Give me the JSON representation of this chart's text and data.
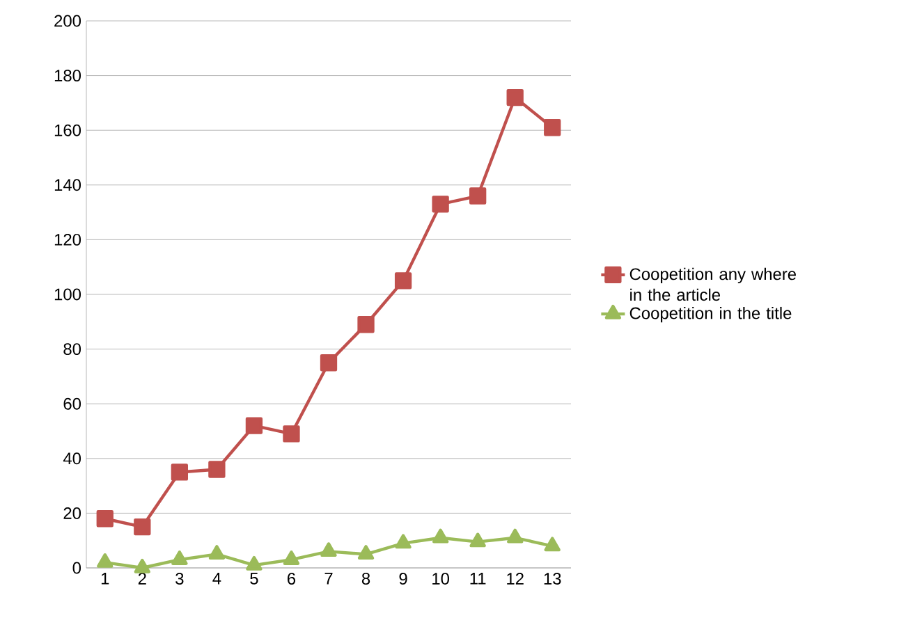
{
  "chart_data": {
    "type": "line",
    "categories": [
      "1",
      "2",
      "3",
      "4",
      "5",
      "6",
      "7",
      "8",
      "9",
      "10",
      "11",
      "12",
      "13"
    ],
    "series": [
      {
        "name": "Coopetition any where in the article",
        "color": "#c0504d",
        "marker": "square",
        "values": [
          18,
          15,
          35,
          36,
          52,
          49,
          75,
          89,
          105,
          133,
          136,
          172,
          161
        ]
      },
      {
        "name": "Coopetition in the title",
        "color": "#9bbb59",
        "marker": "triangle",
        "values": [
          2,
          0,
          3,
          5,
          1,
          3,
          6,
          5,
          9,
          11,
          9.5,
          11,
          8
        ]
      }
    ],
    "ylim": [
      0,
      200
    ],
    "yticks": [
      0,
      20,
      40,
      60,
      80,
      100,
      120,
      140,
      160,
      180,
      200
    ],
    "grid": "y",
    "legend": "right",
    "line_style": "solid"
  }
}
